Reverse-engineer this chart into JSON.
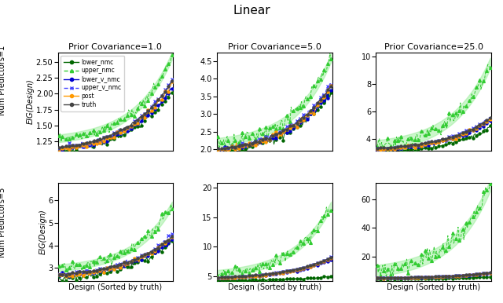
{
  "title": "Linear",
  "suptitle_fontsize": 11,
  "col_titles": [
    "Prior Covariance=1.0",
    "Prior Covariance=5.0",
    "Prior Covariance=25.0"
  ],
  "row_labels": [
    "Num Predictors=1",
    "Num Predictors=5"
  ],
  "xlabel": "Design (Sorted by truth)",
  "ylabel": "EIG(Design)",
  "colors": {
    "lower_nmc": "#006600",
    "upper_nmc": "#33cc33",
    "lower_v_nmc": "#0000cc",
    "upper_v_nmc": "#4444ff",
    "post": "#ff9900",
    "truth": "#444444"
  },
  "subplots": {
    "r0c0": {
      "ylim": [
        1.1,
        2.65
      ],
      "yticks": [
        1.25,
        1.5,
        1.75,
        2.0,
        2.25,
        2.5
      ],
      "truth_lo": 1.15,
      "truth_hi": 2.2,
      "upper_nmc_lo": 1.3,
      "upper_nmc_hi": 2.6,
      "lower_nmc_lo": 1.1,
      "lower_nmc_hi": 2.05,
      "cluster_lo": 1.12,
      "cluster_hi": 2.15,
      "noise_upper": 0.04,
      "noise_lower": 0.025,
      "noise_cluster": 0.02,
      "upper_band": 0.06
    },
    "r0c1": {
      "ylim": [
        1.95,
        4.75
      ],
      "yticks": [
        2.0,
        2.5,
        3.0,
        3.5,
        4.0,
        4.5
      ],
      "truth_lo": 2.0,
      "truth_hi": 3.8,
      "upper_nmc_lo": 2.2,
      "upper_nmc_hi": 4.6,
      "lower_nmc_lo": 1.95,
      "lower_nmc_hi": 3.6,
      "cluster_lo": 1.98,
      "cluster_hi": 3.75,
      "noise_upper": 0.1,
      "noise_lower": 0.06,
      "noise_cluster": 0.04,
      "upper_band": 0.12
    },
    "r0c2": {
      "ylim": [
        3.1,
        10.3
      ],
      "yticks": [
        4,
        6,
        8,
        10
      ],
      "truth_lo": 3.3,
      "truth_hi": 5.5,
      "upper_nmc_lo": 3.5,
      "upper_nmc_hi": 9.5,
      "lower_nmc_lo": 3.0,
      "lower_nmc_hi": 4.8,
      "cluster_lo": 3.2,
      "cluster_hi": 5.4,
      "noise_upper": 0.25,
      "noise_lower": 0.08,
      "noise_cluster": 0.05,
      "upper_band": 0.4
    },
    "r1c0": {
      "ylim": [
        2.4,
        6.8
      ],
      "yticks": [
        3,
        4,
        5,
        6
      ],
      "truth_lo": 2.7,
      "truth_hi": 4.4,
      "upper_nmc_lo": 3.0,
      "upper_nmc_hi": 5.8,
      "lower_nmc_lo": 2.5,
      "lower_nmc_hi": 4.2,
      "cluster_lo": 2.65,
      "cluster_hi": 4.35,
      "noise_upper": 0.12,
      "noise_lower": 0.07,
      "noise_cluster": 0.05,
      "upper_band": 0.15
    },
    "r1c1": {
      "ylim": [
        4.2,
        20.8
      ],
      "yticks": [
        5,
        10,
        15,
        20
      ],
      "truth_lo": 4.8,
      "truth_hi": 8.2,
      "upper_nmc_lo": 5.5,
      "upper_nmc_hi": 17.0,
      "lower_nmc_lo": 4.3,
      "lower_nmc_hi": 5.0,
      "cluster_lo": 4.7,
      "cluster_hi": 8.0,
      "noise_upper": 0.5,
      "noise_lower": 0.06,
      "noise_cluster": 0.05,
      "upper_band": 0.6
    },
    "r1c2": {
      "ylim": [
        2.5,
        72.0
      ],
      "yticks": [
        20,
        40,
        60
      ],
      "truth_lo": 4.8,
      "truth_hi": 8.5,
      "upper_nmc_lo": 10.0,
      "upper_nmc_hi": 70.0,
      "lower_nmc_lo": 4.0,
      "lower_nmc_hi": 5.5,
      "cluster_lo": 4.6,
      "cluster_hi": 8.2,
      "noise_upper": 3.0,
      "noise_lower": 0.08,
      "noise_cluster": 0.07,
      "upper_band": 4.0
    }
  }
}
